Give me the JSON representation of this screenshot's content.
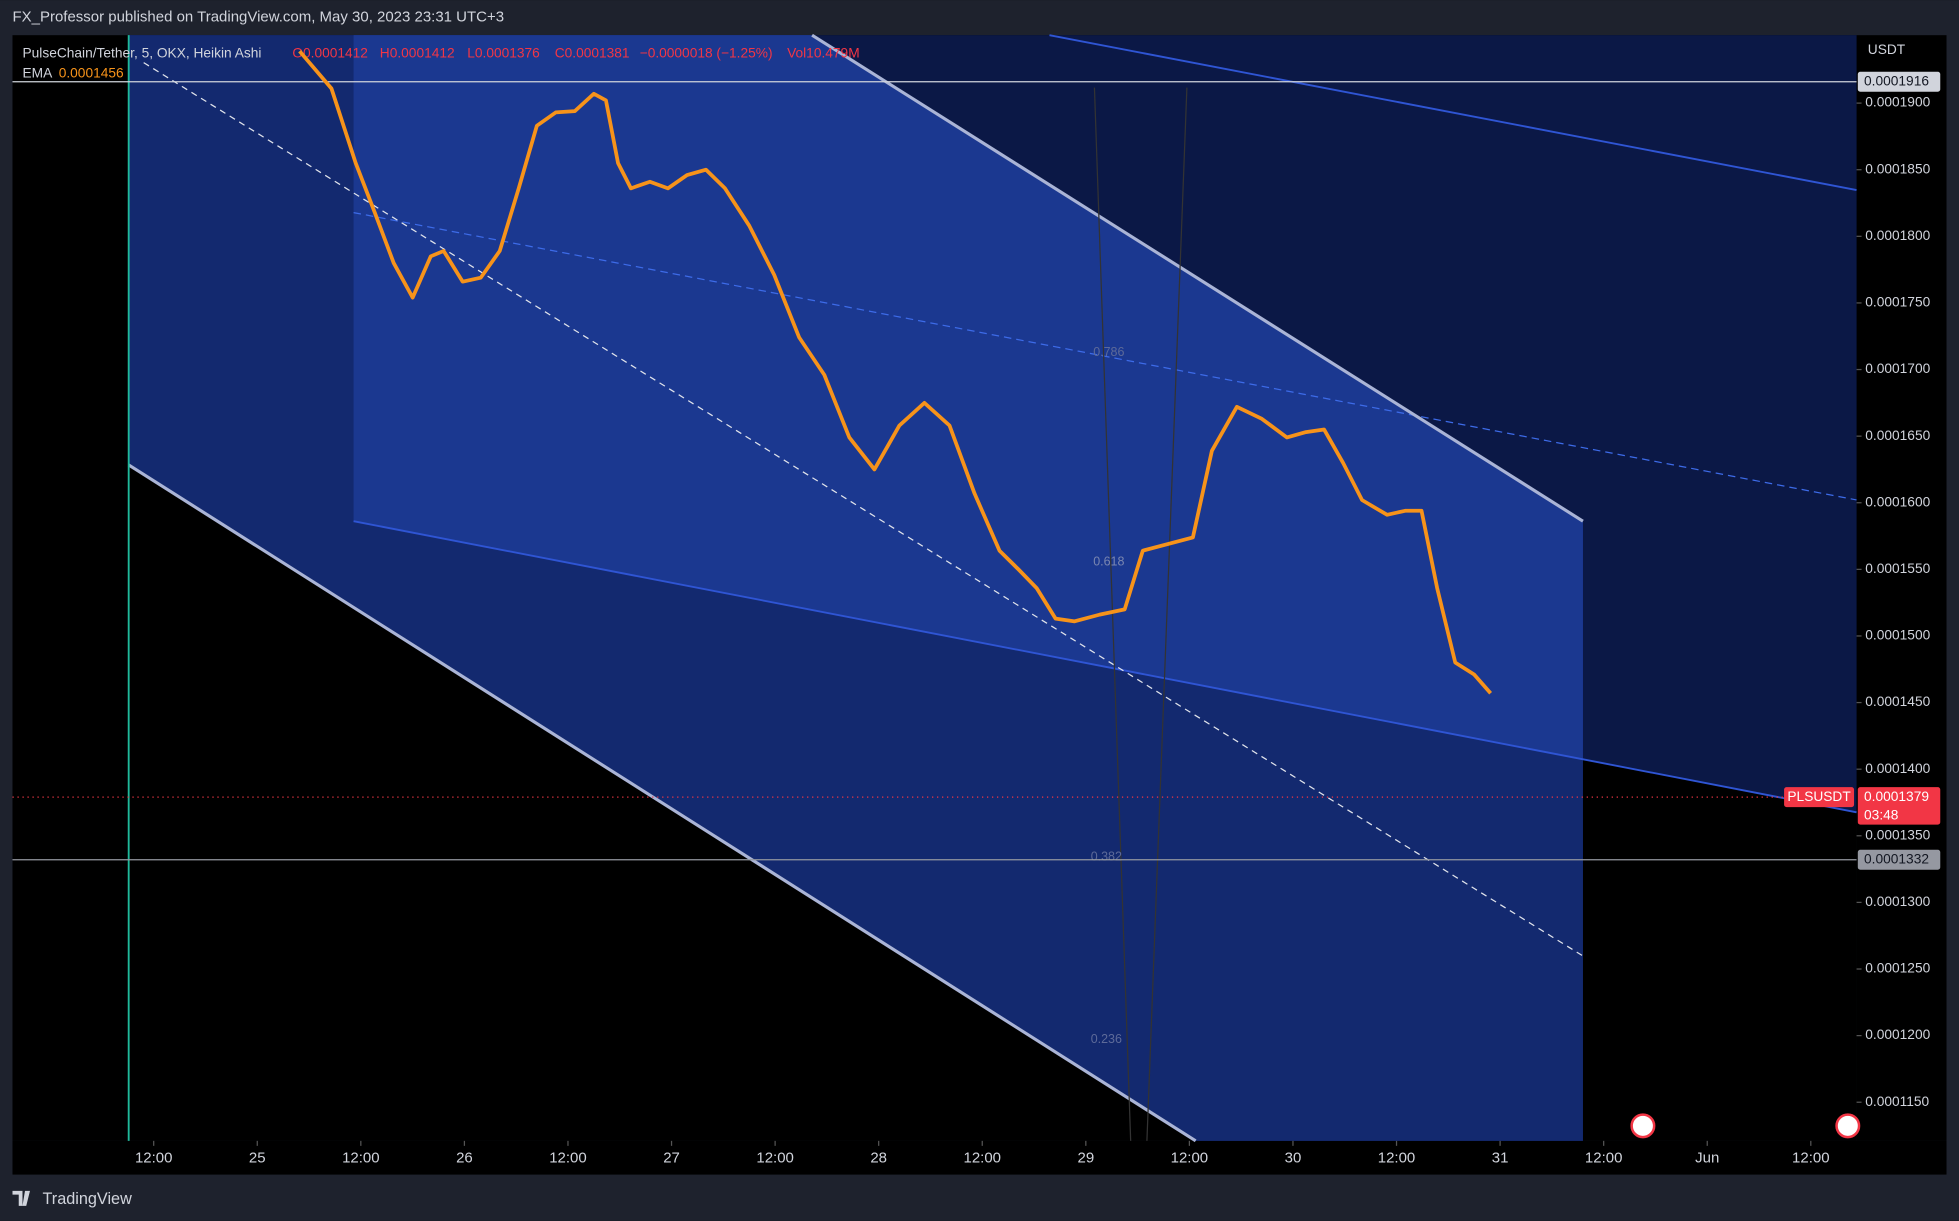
{
  "header": {
    "published": "FX_Professor published on TradingView.com, May 30, 2023 23:31 UTC+3"
  },
  "legend": {
    "symbol": "PulseChain/Tether, 5, OKX, Heikin Ashi",
    "open": "O0.0001412",
    "high": "H0.0001412",
    "low": "L0.0001376",
    "close": "C0.0001381",
    "change": "−0.0000018 (−1.25%)",
    "volume": "Vol10.479M",
    "ema_name": "EMA",
    "ema_value": "0.0001456"
  },
  "footer": {
    "brand": "TradingView"
  },
  "fib_labels": [
    "0.786",
    "0.618",
    "0.382",
    "0.236"
  ],
  "chart_data": {
    "type": "line",
    "currency": "USDT",
    "xlim": [
      -4.36,
      209.3
    ],
    "ylim": [
      0.0001121,
      0.0001951
    ],
    "xticks": [
      {
        "value": 12,
        "label": "12:00"
      },
      {
        "value": 24,
        "label": "25"
      },
      {
        "value": 36,
        "label": "12:00"
      },
      {
        "value": 48,
        "label": "26"
      },
      {
        "value": 60,
        "label": "12:00"
      },
      {
        "value": 72,
        "label": "27"
      },
      {
        "value": 84,
        "label": "12:00"
      },
      {
        "value": 96,
        "label": "28"
      },
      {
        "value": 108,
        "label": "12:00"
      },
      {
        "value": 120,
        "label": "29"
      },
      {
        "value": 132,
        "label": "12:00"
      },
      {
        "value": 144,
        "label": "30"
      },
      {
        "value": 156,
        "label": "12:00"
      },
      {
        "value": 168,
        "label": "31"
      },
      {
        "value": 180,
        "label": "12:00"
      },
      {
        "value": 192,
        "label": "Jun"
      },
      {
        "value": 204,
        "label": "12:00"
      }
    ],
    "yticks": [
      {
        "value": 0.00019,
        "label": "0.0001900"
      },
      {
        "value": 0.000185,
        "label": "0.0001850"
      },
      {
        "value": 0.00018,
        "label": "0.0001800"
      },
      {
        "value": 0.000175,
        "label": "0.0001750"
      },
      {
        "value": 0.00017,
        "label": "0.0001700"
      },
      {
        "value": 0.000165,
        "label": "0.0001650"
      },
      {
        "value": 0.00016,
        "label": "0.0001600"
      },
      {
        "value": 0.000155,
        "label": "0.0001550"
      },
      {
        "value": 0.00015,
        "label": "0.0001500"
      },
      {
        "value": 0.000145,
        "label": "0.0001450"
      },
      {
        "value": 0.00014,
        "label": "0.0001400"
      },
      {
        "value": 0.000135,
        "label": "0.0001350"
      },
      {
        "value": 0.00013,
        "label": "0.0001300"
      },
      {
        "value": 0.000125,
        "label": "0.0001250"
      },
      {
        "value": 0.00012,
        "label": "0.0001200"
      },
      {
        "value": 0.000115,
        "label": "0.0001150"
      }
    ],
    "price_lines": [
      {
        "value": 0.0001916,
        "label": "0.0001916",
        "color": "#d1d4dc"
      },
      {
        "value": 0.0001332,
        "label": "0.0001332",
        "color": "#9598a1"
      }
    ],
    "last_price": {
      "value": 0.0001379,
      "label": "0.0001379",
      "symbol": "PLSUSDT",
      "countdown": "03:48",
      "color": "#f23645"
    },
    "x": [
      28.9,
      32.6,
      35.4,
      37.6,
      39.8,
      42.0,
      44.1,
      45.6,
      47.8,
      49.9,
      52.1,
      54.3,
      56.4,
      58.6,
      60.8,
      63.0,
      64.4,
      65.8,
      67.3,
      69.5,
      71.6,
      73.8,
      76.0,
      78.2,
      81.0,
      83.9,
      86.8,
      89.7,
      92.6,
      95.5,
      98.4,
      101.3,
      104.2,
      107.1,
      110.0,
      112.2,
      114.3,
      116.5,
      118.7,
      121.6,
      124.5,
      126.6,
      129.5,
      132.4,
      134.6,
      137.5,
      140.4,
      143.3,
      145.5,
      147.6,
      149.8,
      152.0,
      154.9,
      157.0,
      158.9,
      160.7,
      162.8,
      165.0,
      166.9
    ],
    "series": [
      {
        "name": "EMA",
        "color": "#f7931a",
        "values": [
          0.0001939,
          0.0001911,
          0.0001855,
          0.0001818,
          0.000178,
          0.0001754,
          0.0001785,
          0.0001789,
          0.0001766,
          0.0001769,
          0.0001789,
          0.0001836,
          0.0001883,
          0.0001893,
          0.0001894,
          0.0001907,
          0.0001902,
          0.0001855,
          0.0001836,
          0.0001841,
          0.0001836,
          0.0001846,
          0.000185,
          0.0001836,
          0.0001808,
          0.0001771,
          0.0001724,
          0.0001696,
          0.0001649,
          0.0001625,
          0.0001658,
          0.0001675,
          0.0001658,
          0.0001607,
          0.0001564,
          0.000155,
          0.0001536,
          0.0001513,
          0.0001511,
          0.0001516,
          0.000152,
          0.0001564,
          0.0001569,
          0.0001574,
          0.0001639,
          0.0001672,
          0.0001663,
          0.0001649,
          0.0001653,
          0.0001655,
          0.000163,
          0.0001602,
          0.0001591,
          0.0001594,
          0.0001594,
          0.0001536,
          0.000148,
          0.0001471,
          0.0001457
        ]
      }
    ]
  }
}
